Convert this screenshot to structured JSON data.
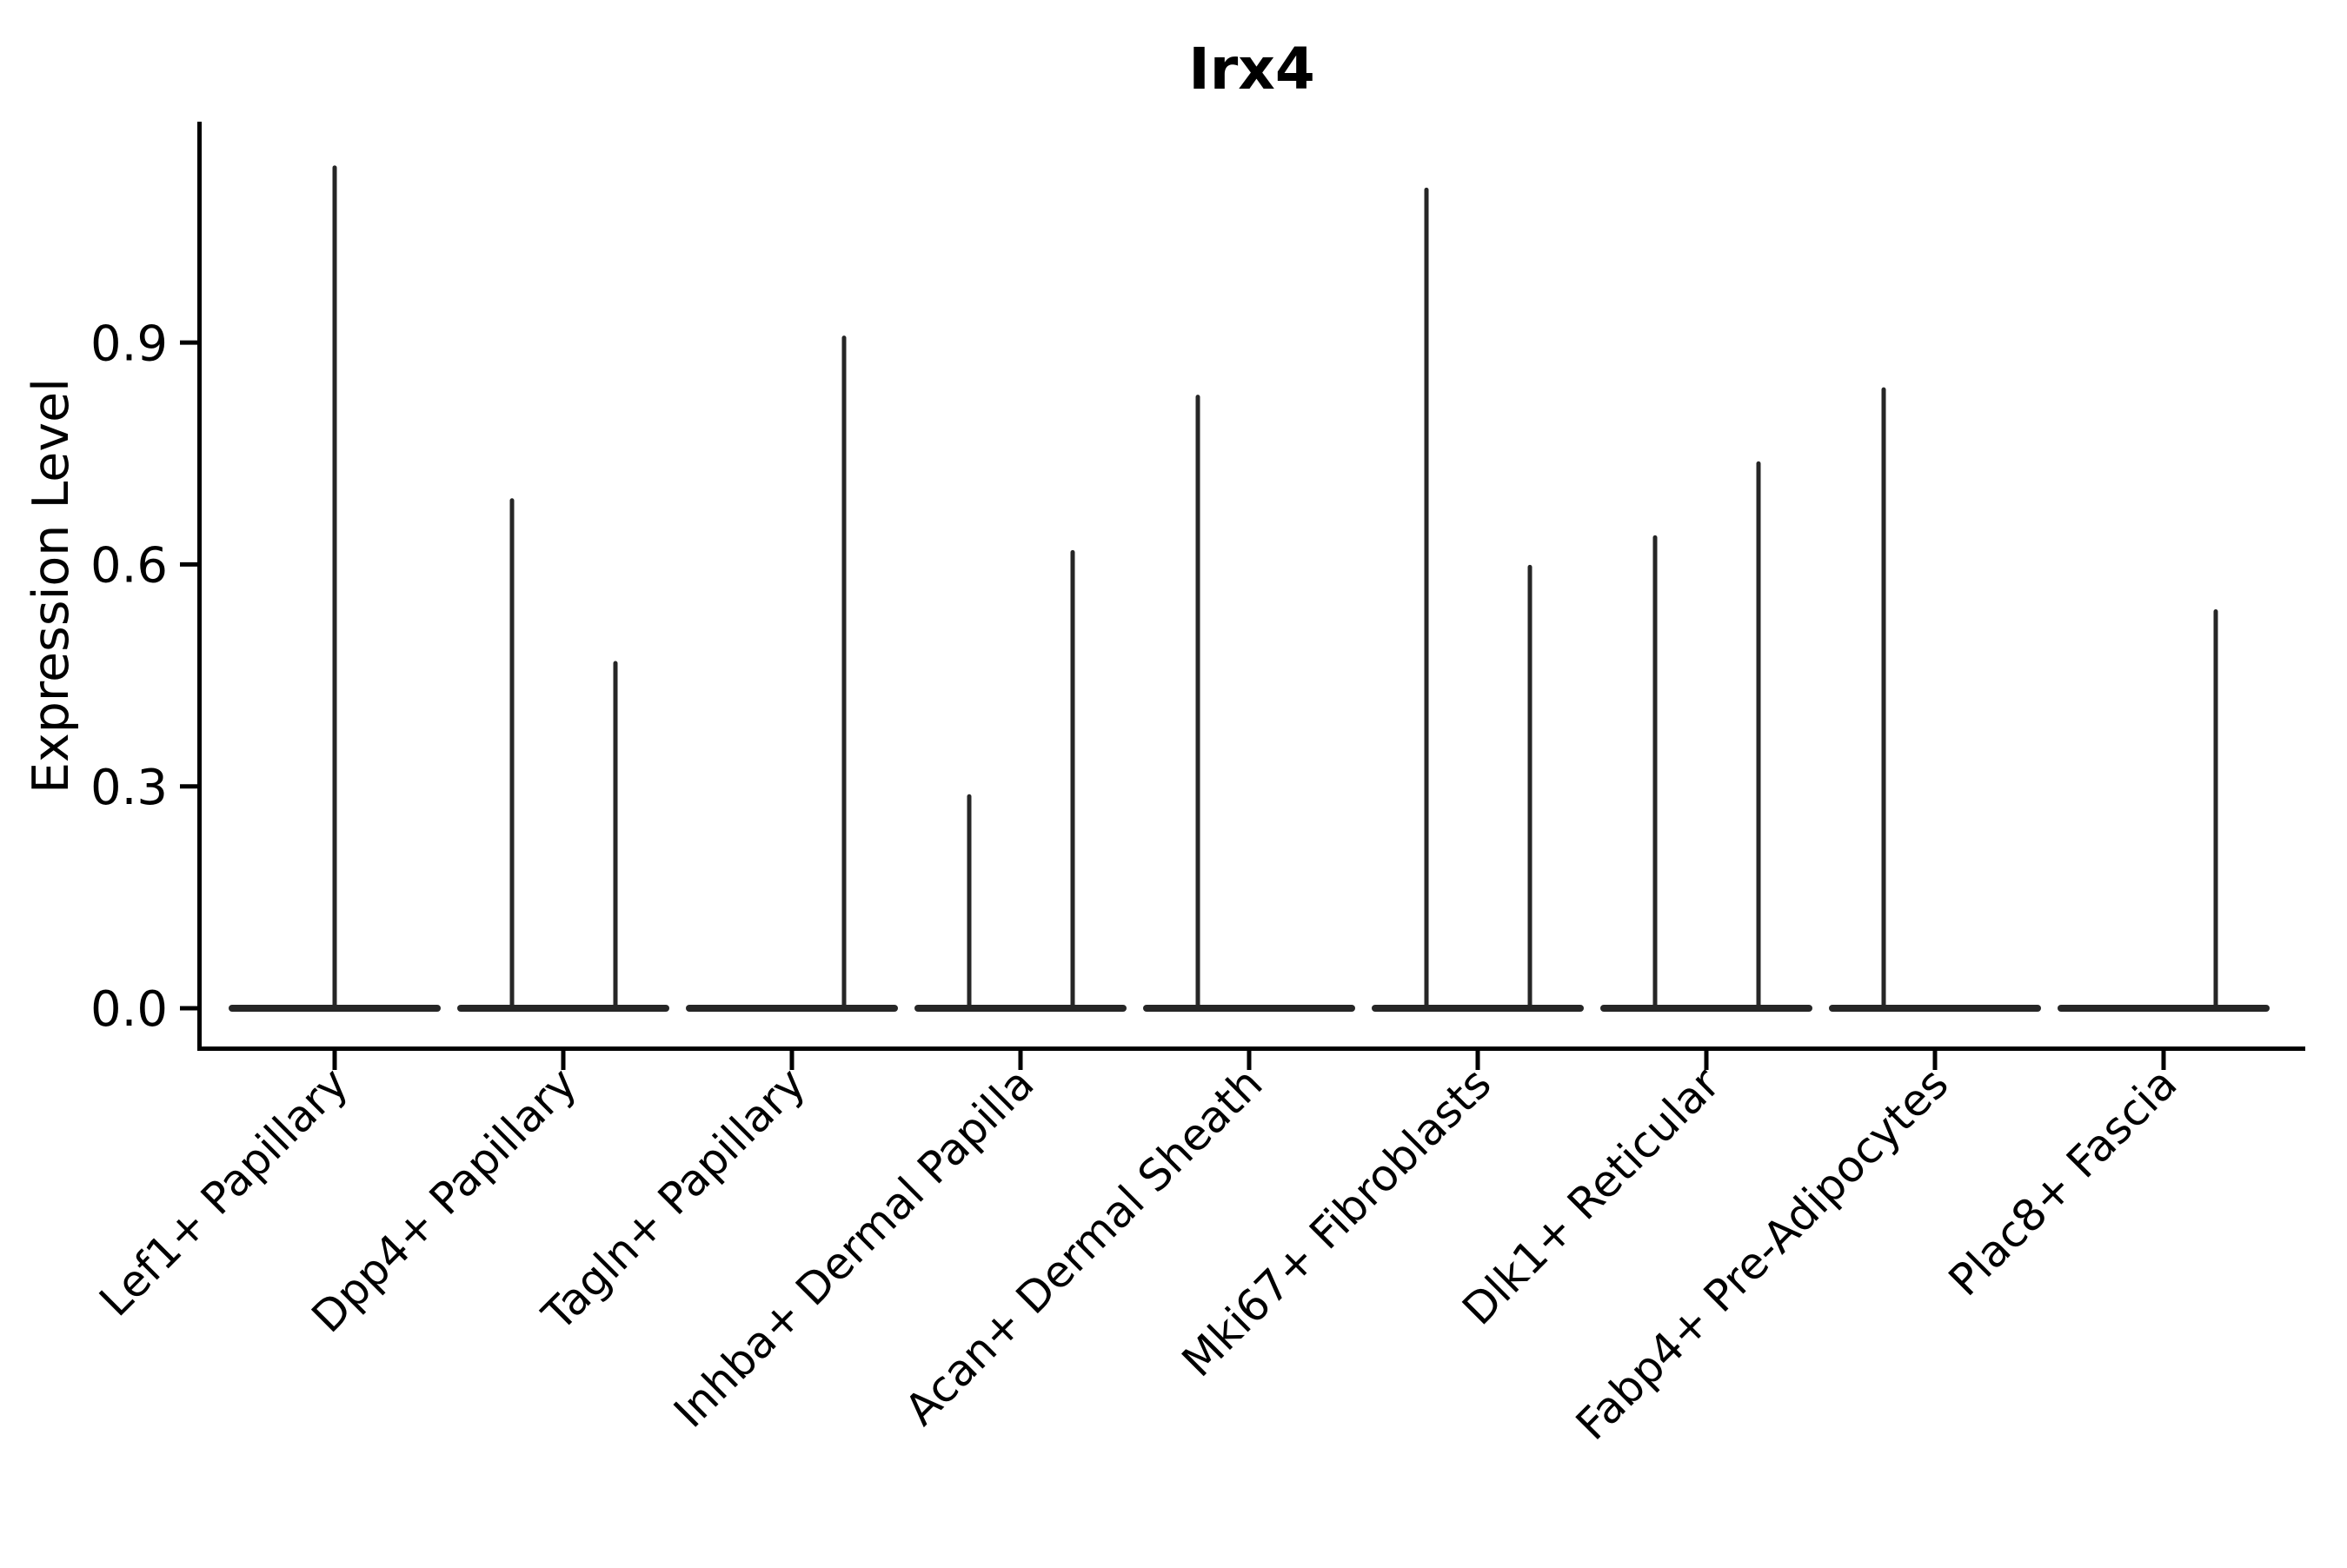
{
  "title": "Irx4",
  "y_axis": {
    "label": "Expression Level",
    "tick_labels": [
      "0.0",
      "0.3",
      "0.6",
      "0.9"
    ]
  },
  "chart_data": {
    "type": "violin",
    "title": "Irx4",
    "xlabel": "",
    "ylabel": "Expression Level",
    "ylim": [
      -0.05,
      1.2
    ],
    "yticks": [
      0.0,
      0.3,
      0.6,
      0.9
    ],
    "grid": false,
    "legend": "none",
    "style": "single-cell expression violins: wide flat density body at 0 with thin vertical density spike up to the max expressing cell; some categories contain two side-by-side sub-violins",
    "categories": [
      "Lef1+ Papillary",
      "Dpp4+ Papillary",
      "Tagln+ Papillary",
      "Inhba+ Dermal Papilla",
      "Acan+ Dermal Sheath",
      "Mki67+ Fibroblasts",
      "Dlk1+ Reticular",
      "Fabp4+ Pre-Adipocytes",
      "Plac8+ Fascia"
    ],
    "violins": [
      {
        "category": "Lef1+ Papillary",
        "body_at_zero": true,
        "spikes": [
          {
            "side": "center",
            "max": 1.14
          }
        ]
      },
      {
        "category": "Dpp4+ Papillary",
        "body_at_zero": true,
        "spikes": [
          {
            "side": "left",
            "max": 0.69
          },
          {
            "side": "right",
            "max": 0.47
          }
        ]
      },
      {
        "category": "Tagln+ Papillary",
        "body_at_zero": true,
        "spikes": [
          {
            "side": "right",
            "max": 0.91
          }
        ]
      },
      {
        "category": "Inhba+ Dermal Papilla",
        "body_at_zero": true,
        "spikes": [
          {
            "side": "left",
            "max": 0.29
          },
          {
            "side": "right",
            "max": 0.62
          }
        ]
      },
      {
        "category": "Acan+ Dermal Sheath",
        "body_at_zero": true,
        "spikes": [
          {
            "side": "left",
            "max": 0.83
          }
        ]
      },
      {
        "category": "Mki67+ Fibroblasts",
        "body_at_zero": true,
        "spikes": [
          {
            "side": "left",
            "max": 1.11
          },
          {
            "side": "right",
            "max": 0.6
          }
        ]
      },
      {
        "category": "Dlk1+ Reticular",
        "body_at_zero": true,
        "spikes": [
          {
            "side": "left",
            "max": 0.64
          },
          {
            "side": "right",
            "max": 0.74
          }
        ]
      },
      {
        "category": "Fabp4+ Pre-Adipocytes",
        "body_at_zero": true,
        "spikes": [
          {
            "side": "left",
            "max": 0.84
          }
        ]
      },
      {
        "category": "Plac8+ Fascia",
        "body_at_zero": true,
        "spikes": [
          {
            "side": "right",
            "max": 0.54
          }
        ]
      }
    ],
    "colors": {
      "ink": "#262626",
      "axis": "#000000"
    }
  }
}
